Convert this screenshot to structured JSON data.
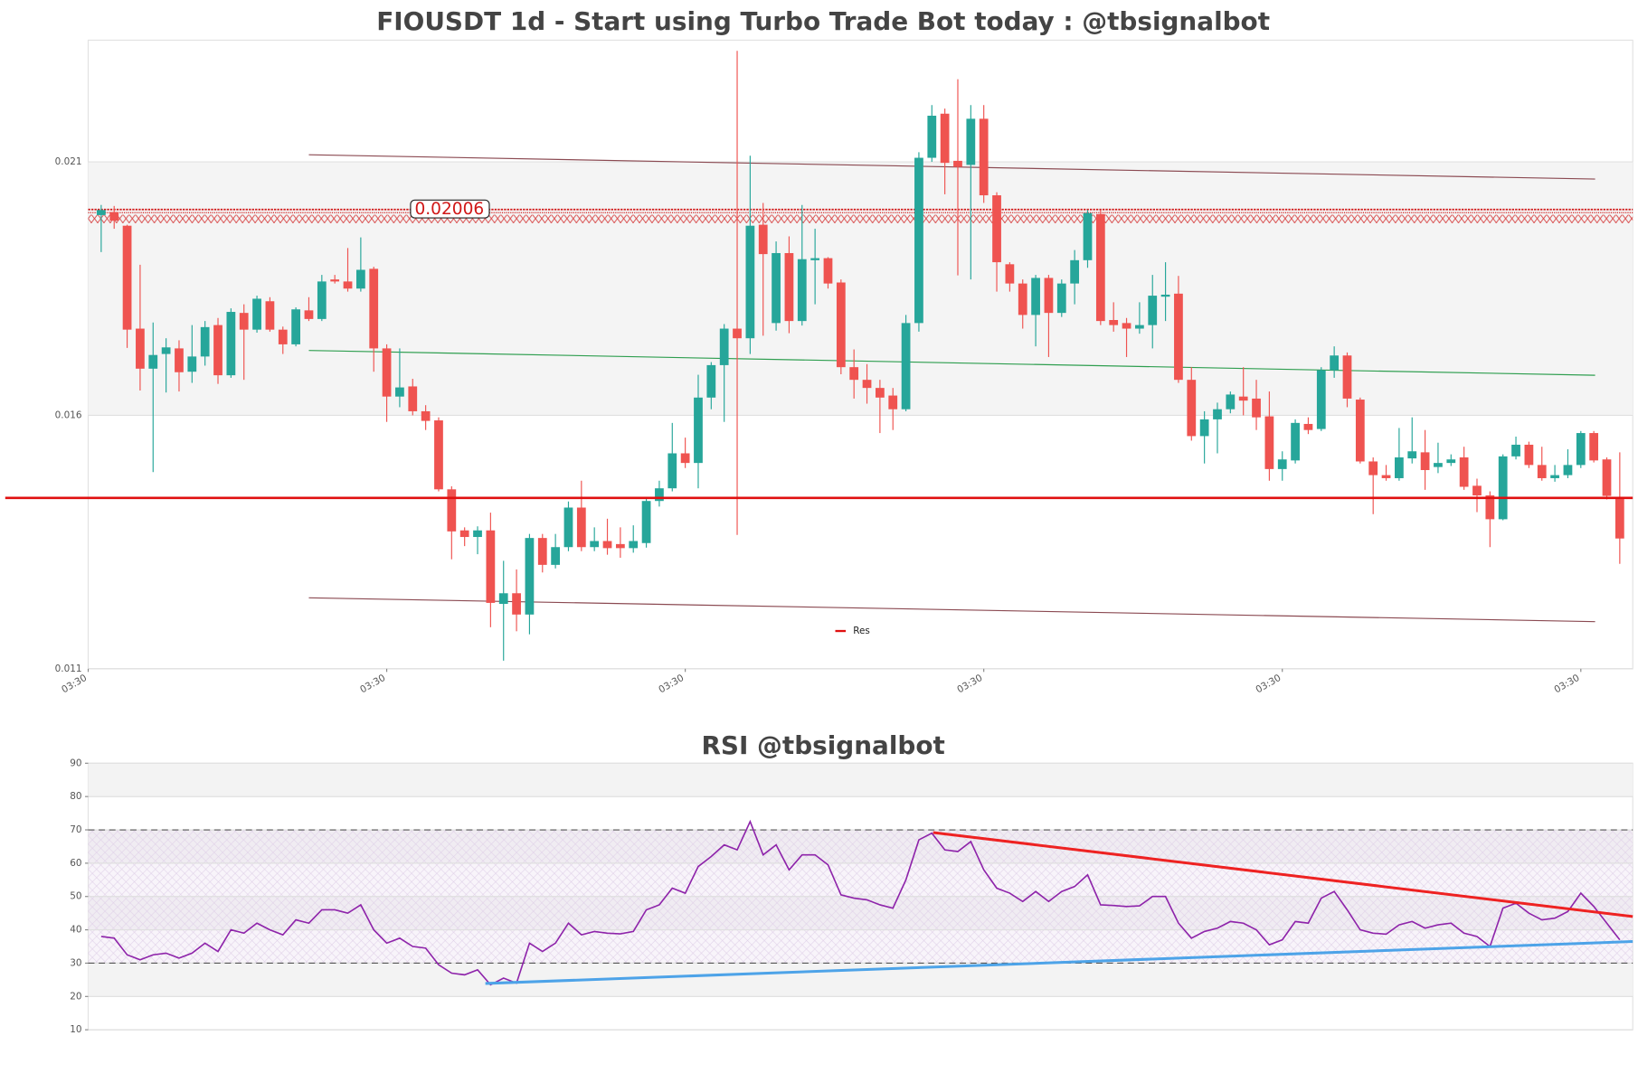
{
  "chart_data": [
    {
      "type": "candlestick",
      "title": "FIOUSDT 1d - Start using Turbo Trade Bot today : @tbsignalbot",
      "up_color": "#26a69a",
      "down_color": "#ef5350",
      "open": [
        0.01995,
        0.02001,
        0.01974,
        0.01771,
        0.01692,
        0.01721,
        0.01732,
        0.01686,
        0.01716,
        0.01778,
        0.01679,
        0.01802,
        0.01769,
        0.01825,
        0.01769,
        0.0174,
        0.01807,
        0.0179,
        0.01868,
        0.01864,
        0.0185,
        0.01889,
        0.01732,
        0.01637,
        0.01657,
        0.01608,
        0.0159,
        0.01454,
        0.01373,
        0.0136,
        0.01373,
        0.01228,
        0.01249,
        0.01207,
        0.01358,
        0.01305,
        0.0134,
        0.01418,
        0.0134,
        0.01352,
        0.01346,
        0.01338,
        0.01348,
        0.01431,
        0.01456,
        0.01525,
        0.01506,
        0.01635,
        0.01699,
        0.01771,
        0.01752,
        0.01976,
        0.01782,
        0.0192,
        0.01786,
        0.01906,
        0.0191,
        0.01862,
        0.01695,
        0.0167,
        0.01654,
        0.01639,
        0.01612,
        0.01782,
        0.02108,
        0.02195,
        0.02102,
        0.02094,
        0.02185,
        0.02034,
        0.01898,
        0.0186,
        0.01798,
        0.01871,
        0.01802,
        0.0186,
        0.01906,
        0.01997,
        0.01788,
        0.01782,
        0.01771,
        0.01778,
        0.01834,
        0.0184,
        0.0167,
        0.01559,
        0.01592,
        0.01612,
        0.01637,
        0.01633,
        0.01598,
        0.01494,
        0.01511,
        0.01583,
        0.01573,
        0.01689,
        0.01718,
        0.01631,
        0.01509,
        0.01482,
        0.01476,
        0.01515,
        0.01527,
        0.01498,
        0.01506,
        0.01517,
        0.01461,
        0.01442,
        0.01395,
        0.01519,
        0.01542,
        0.01502,
        0.01476,
        0.01482,
        0.01502,
        0.01565,
        0.01513,
        0.01439
      ],
      "high": [
        0.02015,
        0.02013,
        0.01976,
        0.01897,
        0.01783,
        0.01752,
        0.01748,
        0.01778,
        0.01786,
        0.01792,
        0.01811,
        0.01819,
        0.01836,
        0.01833,
        0.01775,
        0.01813,
        0.01833,
        0.01877,
        0.01877,
        0.0193,
        0.01951,
        0.01893,
        0.0174,
        0.01732,
        0.01672,
        0.0162,
        0.01596,
        0.0146,
        0.01379,
        0.01381,
        0.01408,
        0.01313,
        0.01296,
        0.01366,
        0.01366,
        0.01366,
        0.0143,
        0.01471,
        0.01379,
        0.01396,
        0.01379,
        0.01383,
        0.01435,
        0.01471,
        0.01585,
        0.01556,
        0.0168,
        0.01705,
        0.0178,
        0.02319,
        0.02112,
        0.02019,
        0.01943,
        0.01953,
        0.02015,
        0.01968,
        0.01912,
        0.01868,
        0.0173,
        0.01701,
        0.0167,
        0.01654,
        0.01798,
        0.02119,
        0.02212,
        0.02205,
        0.02263,
        0.02212,
        0.02212,
        0.0204,
        0.01902,
        0.01868,
        0.01877,
        0.01877,
        0.01868,
        0.01926,
        0.02005,
        0.02005,
        0.01823,
        0.01792,
        0.01823,
        0.01877,
        0.01902,
        0.01875,
        0.01695,
        0.01608,
        0.01625,
        0.01647,
        0.01695,
        0.0167,
        0.01647,
        0.01529,
        0.01592,
        0.01596,
        0.01695,
        0.01736,
        0.01724,
        0.01635,
        0.01517,
        0.01502,
        0.01575,
        0.01596,
        0.01571,
        0.01546,
        0.01523,
        0.01538,
        0.01475,
        0.0145,
        0.01523,
        0.01558,
        0.01548,
        0.01538,
        0.01502,
        0.01533,
        0.01569,
        0.01569,
        0.01517,
        0.01527
      ],
      "low": [
        0.01922,
        0.01968,
        0.01733,
        0.01649,
        0.01488,
        0.01645,
        0.01647,
        0.01664,
        0.01698,
        0.01662,
        0.01674,
        0.0167,
        0.01763,
        0.01765,
        0.01721,
        0.01736,
        0.01786,
        0.01786,
        0.0186,
        0.01844,
        0.01844,
        0.01686,
        0.01587,
        0.01616,
        0.016,
        0.01571,
        0.0145,
        0.01316,
        0.01342,
        0.01326,
        0.01182,
        0.01116,
        0.01174,
        0.01168,
        0.0129,
        0.01298,
        0.01332,
        0.01332,
        0.01332,
        0.01325,
        0.01319,
        0.01329,
        0.01339,
        0.0142,
        0.0145,
        0.01496,
        0.01456,
        0.01612,
        0.01587,
        0.01364,
        0.01721,
        0.01757,
        0.01767,
        0.01762,
        0.01777,
        0.01819,
        0.0185,
        0.01681,
        0.01633,
        0.01623,
        0.01565,
        0.01571,
        0.01608,
        0.01765,
        0.021,
        0.02036,
        0.01876,
        0.01868,
        0.02019,
        0.01844,
        0.01844,
        0.01771,
        0.01736,
        0.01715,
        0.01794,
        0.01819,
        0.01891,
        0.01778,
        0.01765,
        0.01715,
        0.01761,
        0.01732,
        0.01786,
        0.01664,
        0.0155,
        0.01505,
        0.01525,
        0.01604,
        0.016,
        0.01571,
        0.01471,
        0.01471,
        0.01505,
        0.01563,
        0.01569,
        0.01674,
        0.01616,
        0.01505,
        0.01405,
        0.01471,
        0.01471,
        0.01505,
        0.01453,
        0.01486,
        0.015,
        0.01453,
        0.01409,
        0.0134,
        0.01393,
        0.01513,
        0.01496,
        0.01471,
        0.01469,
        0.01476,
        0.01496,
        0.01507,
        0.01434,
        0.01307
      ],
      "close": [
        0.02005,
        0.01984,
        0.01769,
        0.01692,
        0.01719,
        0.01734,
        0.01685,
        0.01716,
        0.01774,
        0.01679,
        0.01804,
        0.01769,
        0.0183,
        0.01769,
        0.0174,
        0.01809,
        0.0179,
        0.01864,
        0.01864,
        0.0185,
        0.01887,
        0.01732,
        0.01637,
        0.01655,
        0.01608,
        0.01589,
        0.01454,
        0.01371,
        0.0136,
        0.01373,
        0.0123,
        0.01249,
        0.01207,
        0.01358,
        0.01305,
        0.0134,
        0.01418,
        0.0134,
        0.01352,
        0.01338,
        0.01338,
        0.01352,
        0.01431,
        0.01456,
        0.01525,
        0.01506,
        0.01635,
        0.01699,
        0.01771,
        0.01752,
        0.01974,
        0.01918,
        0.0192,
        0.01786,
        0.01908,
        0.0191,
        0.0186,
        0.01695,
        0.0167,
        0.01654,
        0.01635,
        0.01612,
        0.01782,
        0.02108,
        0.02191,
        0.02098,
        0.0209,
        0.02185,
        0.02034,
        0.01902,
        0.0186,
        0.01798,
        0.01871,
        0.01802,
        0.0186,
        0.01906,
        0.01999,
        0.01786,
        0.01778,
        0.01771,
        0.01778,
        0.01836,
        0.01838,
        0.0167,
        0.01559,
        0.01592,
        0.01612,
        0.01641,
        0.01629,
        0.01596,
        0.01494,
        0.01513,
        0.01585,
        0.01571,
        0.01689,
        0.01718,
        0.01633,
        0.01509,
        0.01482,
        0.01476,
        0.01517,
        0.01529,
        0.01492,
        0.01506,
        0.01513,
        0.01459,
        0.01442,
        0.01395,
        0.01519,
        0.01542,
        0.01502,
        0.01476,
        0.01482,
        0.01502,
        0.01565,
        0.01511,
        0.01441,
        0.01357
      ],
      "xlim": [
        -1,
        118
      ],
      "xticks": [
        {
          "value": -1,
          "label": "03:30"
        },
        {
          "value": 22,
          "label": "03:30"
        },
        {
          "value": 45,
          "label": "03:30"
        },
        {
          "value": 68,
          "label": "03:30"
        },
        {
          "value": 91,
          "label": "03:30"
        },
        {
          "value": 114,
          "label": "03:30"
        }
      ],
      "ylim": [
        0.011,
        0.0234
      ],
      "yticks": [
        0.011,
        0.016,
        0.021
      ],
      "grid": true,
      "shaded_band": [
        0.016,
        0.021
      ],
      "zone": 0.02006,
      "zone_color": "#d01818",
      "levels": [
        {
          "name": "Res",
          "color": "#e01010",
          "value": 0.01437
        }
      ],
      "legend": "lower center",
      "lines": [
        {
          "color": "#8b4a52",
          "x": [
            16.0,
            115.1
          ],
          "values": [
            0.02114,
            0.02066
          ]
        },
        {
          "color": "#2e9e4f",
          "x": [
            16.0,
            115.1
          ],
          "values": [
            0.01728,
            0.01679
          ]
        },
        {
          "color": "#8b4a52",
          "x": [
            16.0,
            115.1
          ],
          "values": [
            0.0124,
            0.01193
          ]
        }
      ]
    },
    {
      "type": "line",
      "title": "RSI @tbsignalbot",
      "series": [
        {
          "color": "#8e24aa",
          "values": [
            38,
            37.5,
            32.5,
            31,
            32.5,
            33,
            31.5,
            33,
            36,
            33.5,
            40,
            39,
            42,
            40,
            38.5,
            43,
            42,
            46,
            46,
            45,
            47.5,
            40,
            36,
            37.5,
            35,
            34.5,
            29.5,
            27,
            26.5,
            28,
            23.5,
            25.5,
            24,
            36,
            33.5,
            36,
            42,
            38.5,
            39.5,
            39,
            38.8,
            39.5,
            46,
            47.5,
            52.5,
            51,
            59,
            62,
            65.5,
            64,
            72.5,
            62.5,
            65.5,
            58,
            62.5,
            62.5,
            59.5,
            50.5,
            49.5,
            49,
            47.5,
            46.5,
            55,
            67,
            69,
            64,
            63.5,
            66.5,
            58,
            52.5,
            51,
            48.5,
            51.5,
            48.5,
            51.5,
            53,
            56.5,
            47.5,
            47.3,
            47,
            47.2,
            50,
            50,
            42,
            37.5,
            39.5,
            40.5,
            42.5,
            42,
            40,
            35.5,
            37,
            42.5,
            42,
            49.5,
            51.5,
            46,
            40,
            39,
            38.7,
            41.5,
            42.5,
            40.5,
            41.5,
            42,
            39,
            38,
            35,
            46.5,
            48,
            45,
            43,
            43.5,
            45.5,
            51,
            47,
            42,
            37
          ]
        }
      ],
      "xlim": [
        -1,
        118
      ],
      "ylim": [
        10,
        90
      ],
      "yticks": [
        10,
        20,
        30,
        40,
        50,
        60,
        70,
        80,
        90
      ],
      "ref_lines": [
        30,
        70
      ],
      "trend_lines": [
        {
          "color": "#ee2222",
          "x": [
            64.1,
            118
          ],
          "values": [
            69.2,
            44
          ]
        },
        {
          "color": "#4da3e8",
          "x": [
            29.6,
            118
          ],
          "values": [
            23.9,
            36.5
          ]
        }
      ]
    }
  ]
}
